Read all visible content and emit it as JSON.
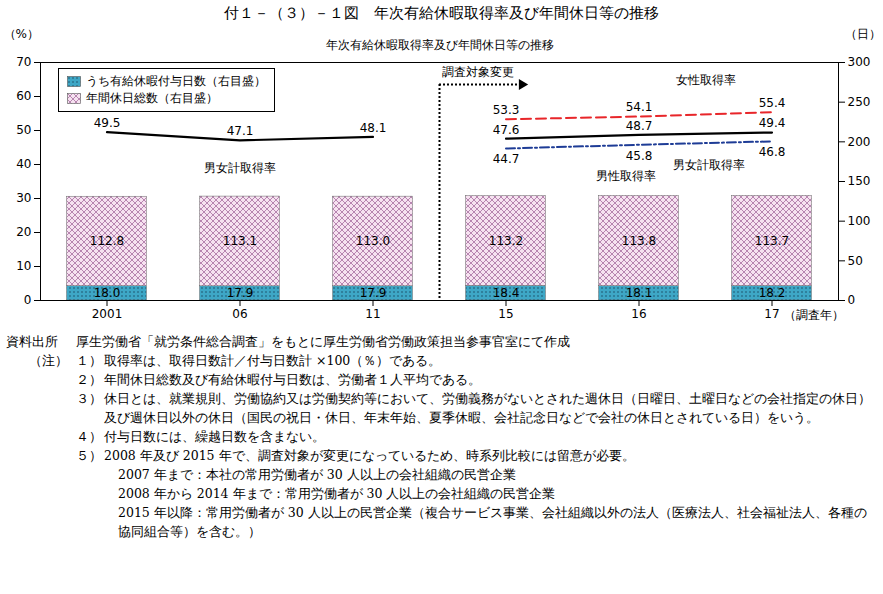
{
  "title": "付１－（３）－１図　年次有給休暇取得率及び年間休日等の推移",
  "chart_data": {
    "type": "bar",
    "title": "年次有給休暇取得率及び年間休日等の推移",
    "categories": [
      "2001",
      "06",
      "11",
      "15",
      "16",
      "17"
    ],
    "x_label": "（調査年）",
    "y_label": "（%）",
    "y2_label": "（日）",
    "ylim": [
      0,
      70
    ],
    "yticks": [
      0,
      10,
      20,
      30,
      40,
      50,
      60,
      70
    ],
    "y2lim": [
      0,
      300
    ],
    "y2ticks": [
      0,
      50,
      100,
      150,
      200,
      250,
      300
    ],
    "grid": false,
    "stacked": true,
    "data_labels": true,
    "legend": "top-left",
    "series": [
      {
        "name": "うち有給休暇付与日数（右目盛）",
        "type": "bar",
        "axis": "y2",
        "color": "#3ea7c6",
        "values": [
          18.0,
          17.9,
          17.9,
          18.4,
          18.1,
          18.2
        ],
        "value_labels": [
          "18.0",
          "17.9",
          "17.9",
          "18.4",
          "18.1",
          "18.2"
        ]
      },
      {
        "name": "年間休日総数（右目盛）",
        "type": "bar",
        "axis": "y2",
        "color": "#f6e2f0",
        "values": [
          112.8,
          113.1,
          113.0,
          113.2,
          113.8,
          113.7
        ],
        "value_labels": [
          "112.8",
          "113.1",
          "113.0",
          "113.2",
          "113.8",
          "113.7"
        ]
      },
      {
        "name": "男女計取得率",
        "type": "line",
        "color": "#000000",
        "line_style": "solid",
        "values": [
          49.5,
          47.1,
          48.1,
          47.6,
          48.7,
          49.4
        ]
      },
      {
        "name": "女性取得率",
        "type": "line",
        "color": "#e8262a",
        "line_style": "dashed",
        "values": [
          null,
          null,
          null,
          53.3,
          54.1,
          55.4
        ]
      },
      {
        "name": "男性取得率",
        "type": "line",
        "color": "#1e3c96",
        "line_style": "dashdot",
        "values": [
          null,
          null,
          null,
          44.7,
          45.8,
          46.8
        ]
      }
    ],
    "annotations": [
      {
        "text": "調査対象変更",
        "after": "11"
      }
    ]
  },
  "source": {
    "label": "資料出所",
    "text": "厚生労働省「就労条件総合調査」をもとに厚生労働省労働政策担当参事官室にて作成"
  },
  "notes": {
    "label": "（注）",
    "items": [
      {
        "num": "１）",
        "text": "取得率は、取得日数計／付与日数計 ×100（％）である。"
      },
      {
        "num": "２）",
        "text": "年間休日総数及び有給休暇付与日数は、労働者１人平均である。"
      },
      {
        "num": "３）",
        "text": "休日とは、就業規則、労働協約又は労働契約等において、労働義務がないとされた週休日（日曜日、土曜日などの会社指定の休日）及び週休日以外の休日（国民の祝日・休日、年末年始、夏季休暇、会社記念日などで会社の休日とされている日）をいう。"
      },
      {
        "num": "４）",
        "text": "付与日数には、繰越日数を含まない。"
      },
      {
        "num": "５）",
        "text": "2008 年及び 2015 年で、調査対象が変更になっているため、時系列比較には留意が必要。",
        "sub": [
          "2007 年まで：本社の常用労働者が 30 人以上の会社組織の民営企業",
          "2008 年から 2014 年まで：常用労働者が 30 人以上の会社組織の民営企業",
          "2015 年以降：常用労働者が 30 人以上の民営企業（複合サービス事業、会社組織以外の法人（医療法人、社会福祉法人、各種の協同組合等）を含む。）"
        ]
      }
    ]
  }
}
